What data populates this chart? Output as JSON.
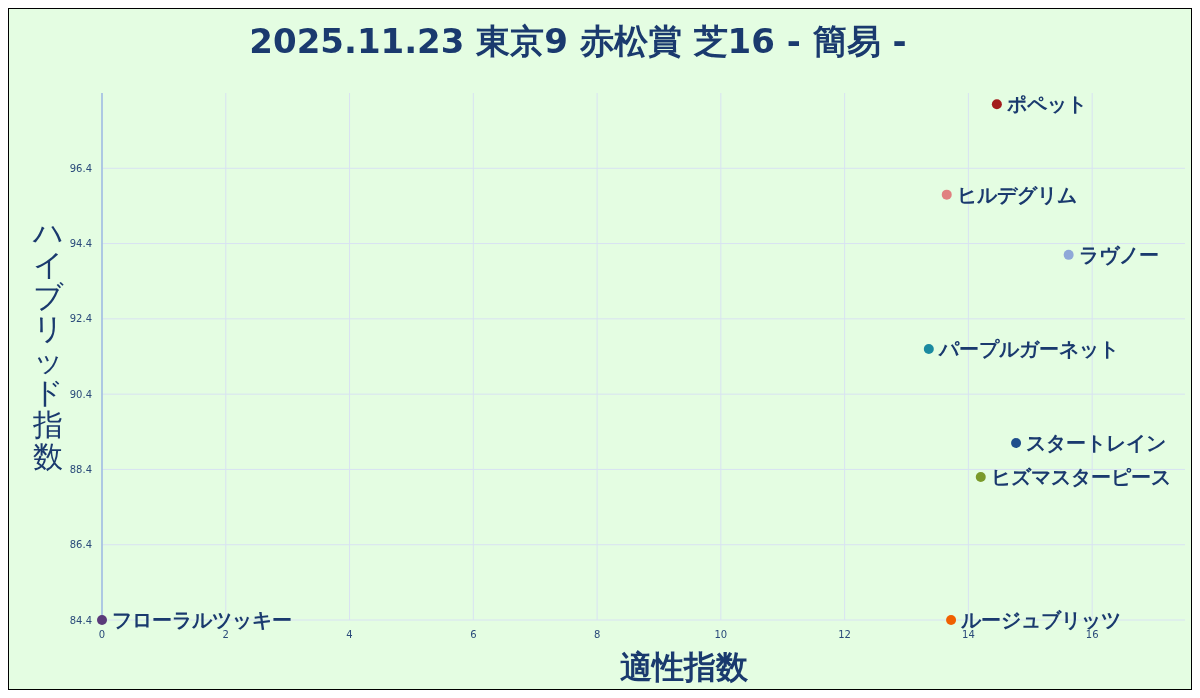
{
  "chart_data": {
    "type": "scatter",
    "title": "2025.11.23 東京9 赤松賞 芝16 - 簡易 -",
    "xlabel": "適性指数",
    "ylabel": "ハイブリッド指数",
    "xlim": [
      0,
      17.5
    ],
    "ylim": [
      84.4,
      98.4
    ],
    "xticks": [
      0,
      2,
      4,
      6,
      8,
      10,
      12,
      14,
      16
    ],
    "yticks": [
      84.4,
      86.4,
      88.4,
      90.4,
      92.4,
      94.4,
      96.4
    ],
    "grid": true,
    "marker": "circle",
    "series": [
      {
        "name": "ポペット",
        "color": "#a31c1c",
        "x": [
          14.46
        ],
        "values": [
          98.1
        ]
      },
      {
        "name": "ヒルデグリム",
        "color": "#e08080",
        "x": [
          13.65
        ],
        "values": [
          95.7
        ]
      },
      {
        "name": "ラヴノー",
        "color": "#8fa8d8",
        "x": [
          15.62
        ],
        "values": [
          94.1
        ]
      },
      {
        "name": "パープルガーネット",
        "color": "#1a8aa0",
        "x": [
          13.36
        ],
        "values": [
          91.6
        ]
      },
      {
        "name": "スタートレイン",
        "color": "#1f4e8c",
        "x": [
          14.77
        ],
        "values": [
          89.1
        ]
      },
      {
        "name": "ヒズマスターピース",
        "color": "#7a9a2a",
        "x": [
          14.2
        ],
        "values": [
          88.2
        ]
      },
      {
        "name": "ルージュブリッツ",
        "color": "#f06000",
        "x": [
          13.72
        ],
        "values": [
          84.4
        ]
      },
      {
        "name": "フローラルツッキー",
        "color": "#5a3a7a",
        "x": [
          0
        ],
        "values": [
          84.4
        ]
      }
    ]
  }
}
